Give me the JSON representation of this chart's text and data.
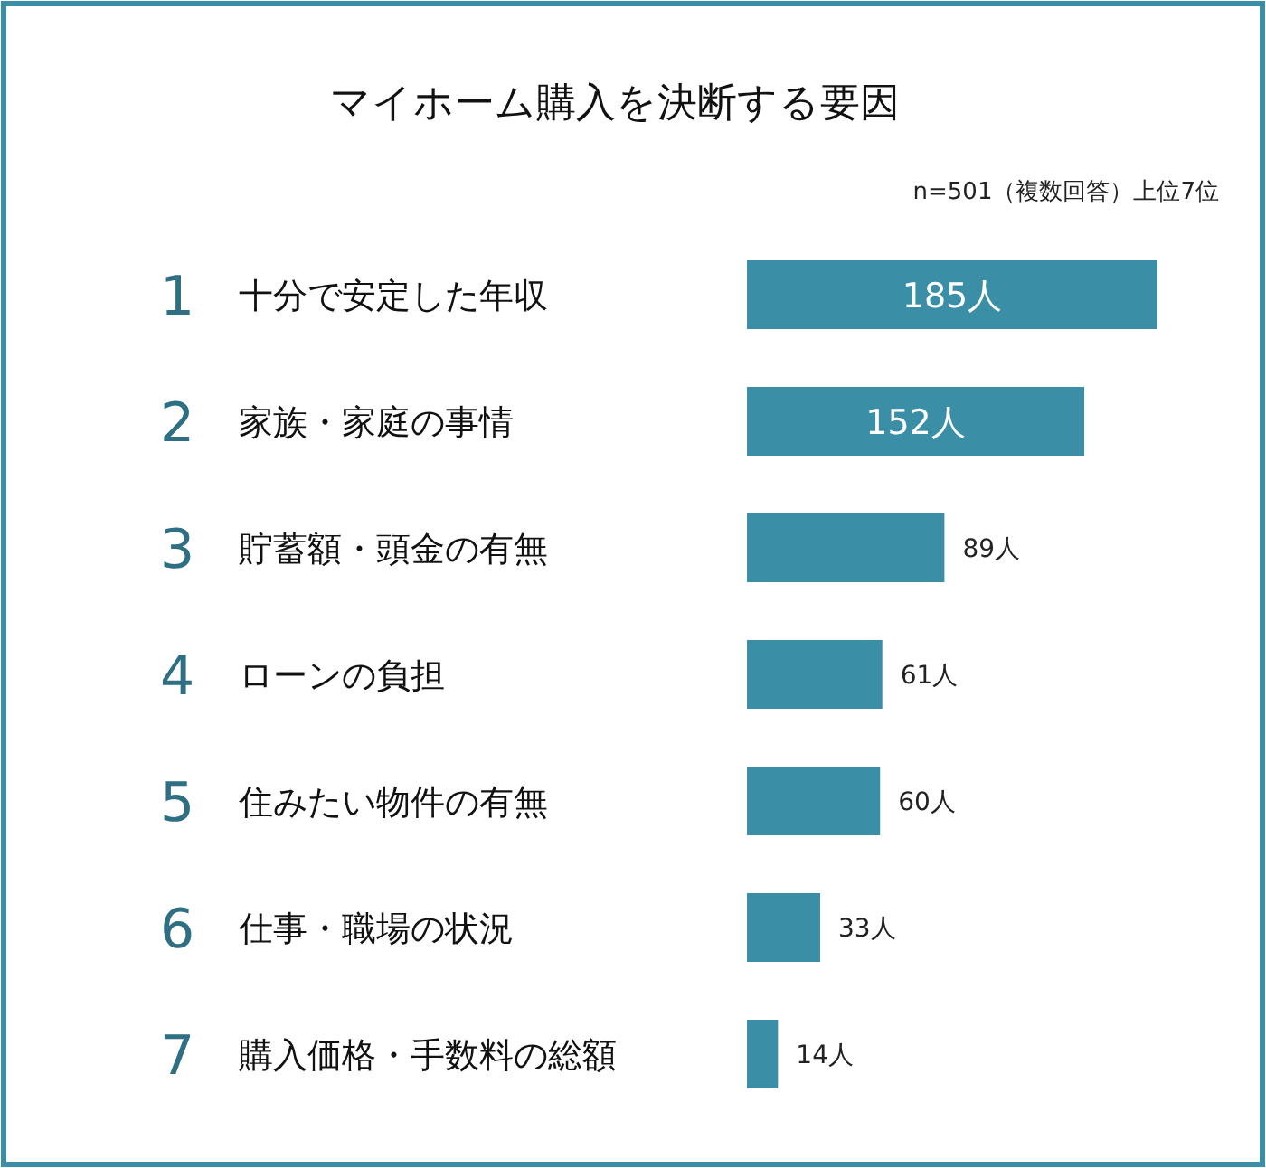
{
  "chart_data": {
    "type": "bar",
    "orientation": "horizontal",
    "title": "マイホーム購入を決断する要因",
    "subtitle": "n=501（複数回答）上位7位",
    "categories": [
      "1 十分で安定した年収",
      "2 家族・家庭の事情",
      "3 貯蓄額・頭金の有無",
      "4 ローンの負担",
      "5 住みたい物件の有無",
      "6 仕事・職場の状況",
      "7 購入価格・手数料の総額"
    ],
    "values": [
      185,
      152,
      89,
      61,
      60,
      33,
      14
    ],
    "value_labels": [
      "185人",
      "152人",
      "89人",
      "61人",
      "60人",
      "33人",
      "14人"
    ],
    "color": "#3a8fa7"
  }
}
